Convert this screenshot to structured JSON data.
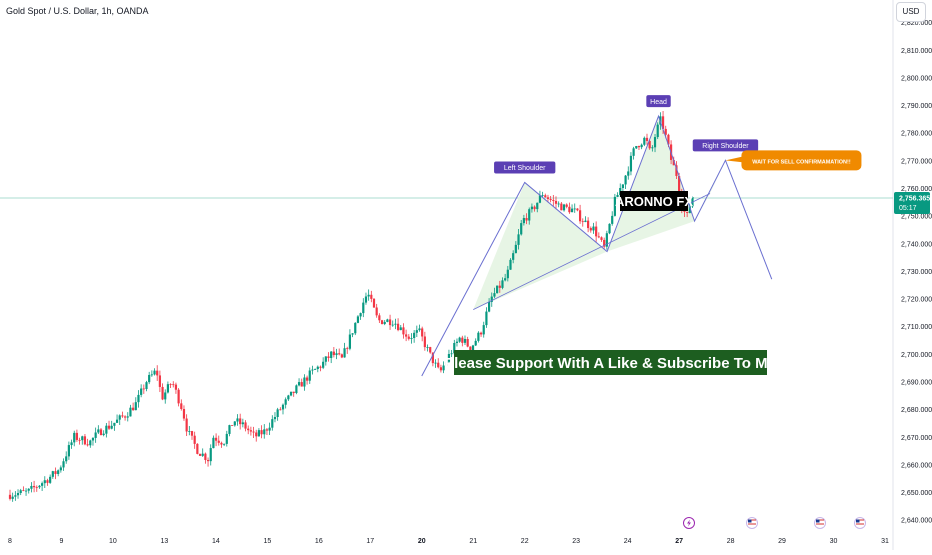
{
  "header": {
    "symbol_title": "Gold Spot / U.S. Dollar, 1h, OANDA",
    "currency": "USD"
  },
  "price_tag": {
    "value": "2,756.365",
    "countdown": "05:17"
  },
  "labels": {
    "left_shoulder": "Left Shoulder",
    "head": "Head",
    "right_shoulder": "Right Shoulder",
    "callout": "WAIT FOR SELL CONFIRMAMATION!!",
    "watermark": "ARONNO FX",
    "banner": "Please Support With A Like & Subscribe To Me"
  },
  "colors": {
    "up": "#089981",
    "down": "#f23645",
    "pattern": "#6a6fd0",
    "label_bg": "#5b3fb4",
    "callout_bg": "#f08a00",
    "banner_bg": "#1d5e20",
    "price_tag": "#089981",
    "guide_line": "#8fd3c0",
    "fill": "#e3f3e0",
    "event_icon": "#9c27b0"
  },
  "events": [
    {
      "date": "27",
      "icon": "lightning-icon"
    },
    {
      "date": "28",
      "icon": "us-flag-icon"
    },
    {
      "date": "29",
      "icon": "us-flag-icon"
    },
    {
      "date": "31",
      "icon": "us-flag-icon"
    }
  ],
  "chart_data": {
    "type": "candlestick",
    "ylim": [
      2637,
      2828
    ],
    "y_ticks": [
      2640,
      2650,
      2660,
      2670,
      2680,
      2690,
      2700,
      2710,
      2720,
      2730,
      2740,
      2750,
      2760,
      2770,
      2780,
      2790,
      2800,
      2810,
      2820
    ],
    "y_tick_labels": [
      "2,640.000",
      "2,650.000",
      "2,660.000",
      "2,670.000",
      "2,680.000",
      "2,690.000",
      "2,700.000",
      "2,710.000",
      "2,720.000",
      "2,730.000",
      "2,740.000",
      "2,750.000",
      "2,760.000",
      "2,770.000",
      "2,780.000",
      "2,790.000",
      "2,800.000",
      "2,810.000",
      "2,820.000"
    ],
    "x_tick_labels": [
      "8",
      "9",
      "10",
      "13",
      "14",
      "15",
      "16",
      "17",
      "20",
      "21",
      "22",
      "23",
      "24",
      "27",
      "28",
      "29",
      "30",
      "31"
    ],
    "x_tick_days": [
      8,
      9,
      10,
      11,
      12,
      13,
      14,
      15,
      16,
      17,
      18,
      19,
      20,
      21,
      22,
      23,
      24,
      25
    ],
    "x_range_days": [
      8,
      25
    ],
    "last_price": 2756.365,
    "price_path": [
      [
        8.0,
        2649
      ],
      [
        8.4,
        2650
      ],
      [
        8.8,
        2655
      ],
      [
        9.0,
        2658
      ],
      [
        9.3,
        2670
      ],
      [
        9.6,
        2668
      ],
      [
        9.8,
        2672
      ],
      [
        10.0,
        2674
      ],
      [
        10.3,
        2678
      ],
      [
        10.5,
        2682
      ],
      [
        10.7,
        2690
      ],
      [
        10.9,
        2694
      ],
      [
        11.0,
        2684
      ],
      [
        11.2,
        2690
      ],
      [
        11.4,
        2680
      ],
      [
        11.5,
        2672
      ],
      [
        11.7,
        2665
      ],
      [
        11.9,
        2662
      ],
      [
        12.0,
        2670
      ],
      [
        12.2,
        2668
      ],
      [
        12.4,
        2676
      ],
      [
        12.6,
        2674
      ],
      [
        12.8,
        2670
      ],
      [
        13.0,
        2672
      ],
      [
        13.3,
        2680
      ],
      [
        13.6,
        2687
      ],
      [
        13.9,
        2693
      ],
      [
        14.1,
        2696
      ],
      [
        14.3,
        2700
      ],
      [
        14.5,
        2698
      ],
      [
        14.7,
        2708
      ],
      [
        14.9,
        2718
      ],
      [
        15.0,
        2722
      ],
      [
        15.2,
        2712
      ],
      [
        15.5,
        2712
      ],
      [
        15.8,
        2706
      ],
      [
        16.0,
        2708
      ],
      [
        16.2,
        2700
      ],
      [
        16.4,
        2693
      ],
      [
        16.6,
        2700
      ],
      [
        16.8,
        2706
      ],
      [
        17.0,
        2702
      ],
      [
        17.2,
        2708
      ],
      [
        17.4,
        2720
      ],
      [
        17.7,
        2728
      ],
      [
        17.9,
        2740
      ],
      [
        18.0,
        2748
      ],
      [
        18.2,
        2752
      ],
      [
        18.4,
        2758
      ],
      [
        18.6,
        2755
      ],
      [
        18.8,
        2753
      ],
      [
        19.0,
        2752
      ],
      [
        19.2,
        2748
      ],
      [
        19.4,
        2745
      ],
      [
        19.6,
        2738
      ],
      [
        19.8,
        2755
      ],
      [
        20.0,
        2764
      ],
      [
        20.2,
        2775
      ],
      [
        20.4,
        2778
      ],
      [
        20.5,
        2772
      ],
      [
        20.6,
        2780
      ],
      [
        20.7,
        2785
      ],
      [
        20.8,
        2778
      ],
      [
        20.9,
        2770
      ],
      [
        21.0,
        2765
      ],
      [
        21.1,
        2754
      ],
      [
        21.2,
        2749
      ],
      [
        21.3,
        2757
      ]
    ],
    "pattern_lines": [
      [
        [
          16.0,
          2692
        ],
        [
          18.0,
          2762
        ],
        [
          19.6,
          2737
        ],
        [
          20.6,
          2786
        ],
        [
          21.3,
          2748
        ],
        [
          21.9,
          2770
        ],
        [
          22.8,
          2727
        ]
      ]
    ],
    "neckline": [
      [
        17.0,
        2716
      ],
      [
        21.6,
        2758
      ]
    ],
    "shaded_areas": [
      [
        [
          17.0,
          2716
        ],
        [
          18.0,
          2762
        ],
        [
          19.6,
          2737
        ]
      ],
      [
        [
          19.6,
          2737
        ],
        [
          20.6,
          2786
        ],
        [
          21.3,
          2748
        ]
      ],
      [
        [
          21.3,
          2748
        ],
        [
          21.9,
          2770
        ],
        [
          21.6,
          2758
        ]
      ]
    ],
    "annotation_points": {
      "left_shoulder": [
        18.0,
        2762
      ],
      "head": [
        20.6,
        2786
      ],
      "right_shoulder": [
        21.9,
        2770
      ]
    }
  }
}
